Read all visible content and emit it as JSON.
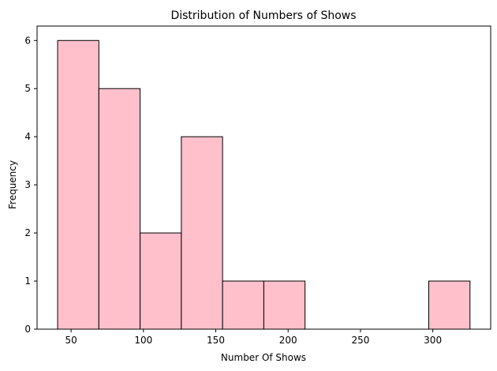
{
  "chart_data": {
    "type": "bar",
    "title": "Distribution of Numbers of Shows",
    "xlabel": "Number Of Shows",
    "ylabel": "Frequency",
    "bins": [
      {
        "x0": 40.7,
        "x1": 69.2,
        "count": 6
      },
      {
        "x0": 69.2,
        "x1": 97.7,
        "count": 5
      },
      {
        "x0": 97.7,
        "x1": 126.2,
        "count": 2
      },
      {
        "x0": 126.2,
        "x1": 154.7,
        "count": 4
      },
      {
        "x0": 154.7,
        "x1": 183.2,
        "count": 1
      },
      {
        "x0": 183.2,
        "x1": 211.7,
        "count": 1
      },
      {
        "x0": 211.7,
        "x1": 240.2,
        "count": 0
      },
      {
        "x0": 240.2,
        "x1": 268.7,
        "count": 0
      },
      {
        "x0": 268.7,
        "x1": 297.2,
        "count": 0
      },
      {
        "x0": 297.2,
        "x1": 325.7,
        "count": 1
      }
    ],
    "xlim": [
      26.5,
      340
    ],
    "ylim": [
      0,
      6.3
    ],
    "xticks": [
      "50",
      "100",
      "150",
      "200",
      "250",
      "300"
    ],
    "yticks": [
      "0",
      "1",
      "2",
      "3",
      "4",
      "5",
      "6"
    ],
    "grid": false,
    "bar_color": "#ffc0cb",
    "edge_color": "#000000"
  }
}
